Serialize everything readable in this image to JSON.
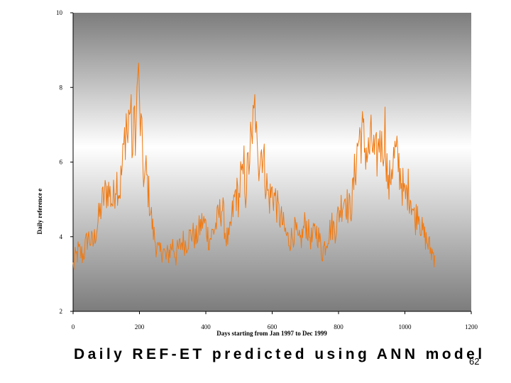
{
  "slide": {
    "title": "Daily REF-ET  predicted using  ANN model",
    "number": "62"
  },
  "chart_data": {
    "type": "line",
    "xlabel": "Days starting from Jan 1997 to Dec 1999",
    "ylabel": "Daily reference e",
    "xlim": [
      0,
      1200
    ],
    "ylim": [
      2,
      10
    ],
    "xticks": [
      "0",
      "200",
      "400",
      "600",
      "800",
      "1000",
      "1200"
    ],
    "yticks": [
      "10",
      "8",
      "6",
      "4",
      "2"
    ],
    "grid": false,
    "background": "vertical gradient grey-white-grey",
    "series": [
      {
        "color": "#F07A12",
        "x": [
          0,
          15,
          30,
          45,
          60,
          75,
          90,
          105,
          120,
          130,
          140,
          150,
          155,
          160,
          165,
          170,
          175,
          180,
          185,
          190,
          195,
          200,
          205,
          210,
          215,
          220,
          230,
          240,
          250,
          260,
          270,
          280,
          290,
          300,
          310,
          320,
          330,
          340,
          350,
          360,
          370,
          380,
          390,
          400,
          410,
          420,
          430,
          440,
          450,
          460,
          470,
          480,
          490,
          500,
          505,
          510,
          515,
          520,
          525,
          530,
          535,
          540,
          545,
          550,
          555,
          560,
          570,
          580,
          590,
          600,
          610,
          620,
          630,
          640,
          650,
          660,
          670,
          680,
          690,
          700,
          710,
          720,
          730,
          740,
          750,
          760,
          770,
          780,
          790,
          800,
          810,
          820,
          830,
          840,
          850,
          860,
          870,
          880,
          890,
          900,
          910,
          920,
          925,
          930,
          935,
          940,
          950,
          960,
          970,
          980,
          990,
          1000,
          1010,
          1020,
          1030,
          1040,
          1050,
          1060,
          1070,
          1080,
          1090
        ],
        "y": [
          3.2,
          3.6,
          3.5,
          4.0,
          3.8,
          4.4,
          5.0,
          5.3,
          4.9,
          5.6,
          5.2,
          6.0,
          6.6,
          7.2,
          6.5,
          7.7,
          7.0,
          6.2,
          7.3,
          6.8,
          8.6,
          7.4,
          6.8,
          6.0,
          5.5,
          5.7,
          5.0,
          4.2,
          3.8,
          3.5,
          3.7,
          3.4,
          3.6,
          3.8,
          3.5,
          3.7,
          3.9,
          3.8,
          4.0,
          4.1,
          3.9,
          4.2,
          4.4,
          4.3,
          3.9,
          4.1,
          4.3,
          4.6,
          4.8,
          4.0,
          3.9,
          4.6,
          5.2,
          5.0,
          5.6,
          5.4,
          5.9,
          5.2,
          5.7,
          6.0,
          6.5,
          6.2,
          8.1,
          6.3,
          7.0,
          6.1,
          6.4,
          5.6,
          5.0,
          5.2,
          5.0,
          4.6,
          4.4,
          4.1,
          3.9,
          4.0,
          4.2,
          3.8,
          4.0,
          4.4,
          4.1,
          3.9,
          4.2,
          4.0,
          3.6,
          3.8,
          4.1,
          4.3,
          4.2,
          4.6,
          4.9,
          5.1,
          4.7,
          4.9,
          5.8,
          6.6,
          6.8,
          6.4,
          6.2,
          6.6,
          6.0,
          6.3,
          6.9,
          6.3,
          6.6,
          6.9,
          5.2,
          5.9,
          6.2,
          6.0,
          5.5,
          5.0,
          5.3,
          5.0,
          4.4,
          4.8,
          4.2,
          4.0,
          3.8,
          3.6,
          3.5
        ]
      }
    ]
  }
}
